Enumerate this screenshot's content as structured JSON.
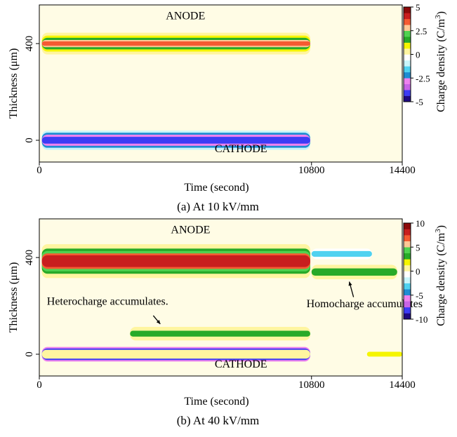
{
  "colors": {
    "plot_background": "#ffffff",
    "low_level_haze": "#fffad0",
    "scale": [
      "#1e0a82",
      "#3c3cf5",
      "#c864e6",
      "#ee82ee",
      "#1e8cd2",
      "#50d2f0",
      "#c8f5fa",
      "#ffffff",
      "#fff5a0",
      "#f5f500",
      "#28aa28",
      "#50d250",
      "#ffc896",
      "#f55a32",
      "#c81e1e",
      "#8c0a0a"
    ]
  },
  "chart_data": [
    {
      "type": "heatmap",
      "caption": "(a) At 10 kV/mm",
      "xlabel": "Time (second)",
      "ylabel": "Thickness (μm)",
      "colorbar_label": "Charge density (C/m³)",
      "colorbar_label_parts": {
        "main": "Charge density (C/m",
        "sup": "3",
        "end": ")"
      },
      "xlim": [
        0,
        14400
      ],
      "ylim": [
        -90,
        560
      ],
      "xticks": [
        {
          "v": 0,
          "label": "0"
        },
        {
          "v": 10800,
          "label": "10800"
        },
        {
          "v": 14400,
          "label": "14400"
        }
      ],
      "yticks": [
        {
          "v": 0,
          "label": "0"
        },
        {
          "v": 400,
          "label": "400"
        }
      ],
      "colorbar_range": [
        -5,
        5
      ],
      "colorbar_ticks": [
        {
          "v": 5,
          "label": "5"
        },
        {
          "v": 2.5,
          "label": "2.5"
        },
        {
          "v": 0,
          "label": "0"
        },
        {
          "v": -2.5,
          "label": "-2.5"
        },
        {
          "v": -5,
          "label": "-5"
        }
      ],
      "annotations": [
        {
          "id": "anode",
          "text": "ANODE",
          "x": 5800,
          "y": 500
        },
        {
          "id": "cathode",
          "text": "CATHODE",
          "x": 8000,
          "y": -50
        }
      ],
      "bands": [
        {
          "name": "anode-layer",
          "t_start": 100,
          "t_end": 10750,
          "center_um": 400,
          "layers": [
            {
              "half_um": 45,
              "value": 0.6
            },
            {
              "half_um": 33,
              "value": 1.1
            },
            {
              "half_um": 24,
              "value": 1.6
            },
            {
              "half_um": 15,
              "value": 2.6
            },
            {
              "half_um": 9,
              "value": 3.2
            }
          ]
        },
        {
          "name": "cathode-layer",
          "t_start": 100,
          "t_end": 10750,
          "center_um": 0,
          "layers": [
            {
              "half_um": 40,
              "value": -1.1
            },
            {
              "half_um": 31,
              "value": -2.0
            },
            {
              "half_um": 23,
              "value": -3.0
            },
            {
              "half_um": 14,
              "value": -4.1
            }
          ]
        }
      ]
    },
    {
      "type": "heatmap",
      "caption": "(b) At 40 kV/mm",
      "xlabel": "Time (second)",
      "ylabel": "Thickness (μm)",
      "colorbar_label": "Charge density (C/m³)",
      "colorbar_label_parts": {
        "main": "Charge density (C/m",
        "sup": "3",
        "end": ")"
      },
      "xlim": [
        0,
        14400
      ],
      "ylim": [
        -90,
        560
      ],
      "xticks": [
        {
          "v": 0,
          "label": "0"
        },
        {
          "v": 10800,
          "label": "10800"
        },
        {
          "v": 14400,
          "label": "14400"
        }
      ],
      "yticks": [
        {
          "v": 0,
          "label": "0"
        },
        {
          "v": 400,
          "label": "400"
        }
      ],
      "colorbar_range": [
        -10,
        10
      ],
      "colorbar_ticks": [
        {
          "v": 10,
          "label": "10"
        },
        {
          "v": 5,
          "label": "5"
        },
        {
          "v": 0,
          "label": "0"
        },
        {
          "v": -5,
          "label": "-5"
        },
        {
          "v": -10,
          "label": "-10"
        }
      ],
      "annotations": [
        {
          "id": "anode",
          "text": "ANODE",
          "x": 6000,
          "y": 500
        },
        {
          "id": "cathode",
          "text": "CATHODE",
          "x": 8000,
          "y": -55
        },
        {
          "id": "heterocharge",
          "text": "Heterocharge accumulates.",
          "x": 300,
          "y": 205,
          "arrow_to": [
            4800,
            125
          ]
        },
        {
          "id": "homocharge",
          "text": "Homocharge accumulates",
          "x": 10600,
          "y": 195,
          "arrow_to": [
            12300,
            300
          ]
        }
      ],
      "bands": [
        {
          "name": "anode-layer",
          "t_start": 100,
          "t_end": 10750,
          "center_um": 385,
          "layers": [
            {
              "half_um": 70,
              "value": 1.2
            },
            {
              "half_um": 52,
              "value": 3.2
            },
            {
              "half_um": 42,
              "value": 4.5
            },
            {
              "half_um": 32,
              "value": 6.8
            },
            {
              "half_um": 24,
              "value": 8.6
            }
          ]
        },
        {
          "name": "cathode-layer",
          "t_start": 100,
          "t_end": 10750,
          "center_um": 0,
          "layers": [
            {
              "half_um": 30,
              "value": -5.5
            },
            {
              "half_um": 24,
              "value": -7.8
            },
            {
              "half_um": 18,
              "value": 0
            }
          ]
        },
        {
          "name": "heterocharge-layer",
          "t_start": 3600,
          "t_end": 10750,
          "center_um": 85,
          "layers": [
            {
              "half_um": 28,
              "value": 1.2
            },
            {
              "half_um": 12,
              "value": 3.2
            }
          ]
        },
        {
          "name": "post-anode-negative",
          "t_start": 10800,
          "t_end": 13200,
          "center_um": 415,
          "layers": [
            {
              "half_um": 22,
              "value": -1.2
            },
            {
              "half_um": 12,
              "value": -2.8
            }
          ]
        },
        {
          "name": "post-homocharge",
          "t_start": 10800,
          "t_end": 14200,
          "center_um": 340,
          "layers": [
            {
              "half_um": 30,
              "value": 1.2
            },
            {
              "half_um": 15,
              "value": 3.5
            }
          ]
        },
        {
          "name": "post-cathode",
          "t_start": 13000,
          "t_end": 14400,
          "center_um": 0,
          "layers": [
            {
              "half_um": 10,
              "value": 1.6
            }
          ]
        }
      ]
    }
  ]
}
